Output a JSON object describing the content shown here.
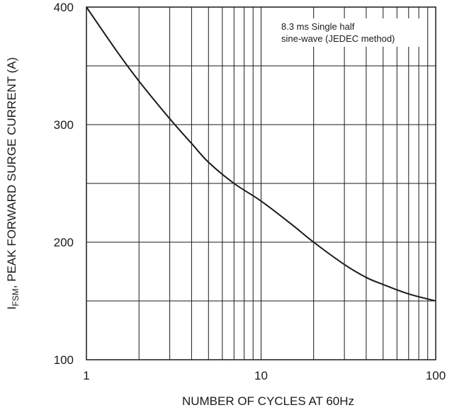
{
  "chart_data": {
    "type": "line",
    "x_scale": "log",
    "xlim": [
      1,
      100
    ],
    "ylim": [
      100,
      400
    ],
    "x_ticks": [
      {
        "value": 1,
        "label": "1"
      },
      {
        "value": 10,
        "label": "10"
      },
      {
        "value": 100,
        "label": "100"
      }
    ],
    "y_ticks": [
      {
        "value": 100,
        "label": "100"
      },
      {
        "value": 200,
        "label": "200"
      },
      {
        "value": 300,
        "label": "300"
      },
      {
        "value": 400,
        "label": "400"
      }
    ],
    "y_minor_gridlines": [
      150,
      250,
      350
    ],
    "grid": true,
    "xlabel": "NUMBER OF CYCLES AT 60Hz",
    "ylabel": {
      "prefix": "I",
      "subscript": "FSM",
      "suffix": ", PEAK FORWARD SURGE CURRENT (A)"
    },
    "annotation": {
      "lines": [
        "8.3 ms Single half",
        "sine-wave (JEDEC method)"
      ],
      "position": "top-right"
    },
    "series": [
      {
        "x": [
          1,
          1.5,
          2,
          3,
          4,
          5,
          7,
          10,
          15,
          20,
          30,
          40,
          50,
          70,
          100
        ],
        "y": [
          400,
          362,
          337,
          305,
          284,
          268,
          250,
          235,
          215,
          200,
          181,
          170,
          164,
          156,
          150
        ]
      }
    ]
  }
}
